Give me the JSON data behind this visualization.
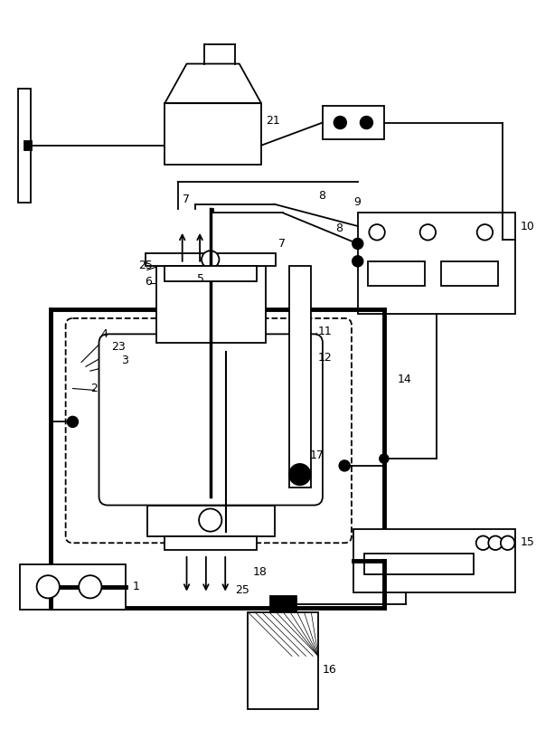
{
  "bg_color": "#ffffff",
  "lc": "#000000",
  "lw": 1.3,
  "tlw": 3.5,
  "fig_w": 5.93,
  "fig_h": 8.27,
  "dpi": 100
}
